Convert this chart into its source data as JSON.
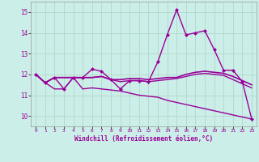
{
  "xlabel": "Windchill (Refroidissement éolien,°C)",
  "background_color": "#cceee8",
  "grid_color": "#b0d8cc",
  "line_color": "#990099",
  "xlim": [
    -0.5,
    23.5
  ],
  "ylim": [
    9.5,
    15.5
  ],
  "yticks": [
    10,
    11,
    12,
    13,
    14,
    15
  ],
  "xticks": [
    0,
    1,
    2,
    3,
    4,
    5,
    6,
    7,
    8,
    9,
    10,
    11,
    12,
    13,
    14,
    15,
    16,
    17,
    18,
    19,
    20,
    21,
    22,
    23
  ],
  "series": [
    {
      "x": [
        0,
        1,
        2,
        3,
        4,
        5,
        6,
        7,
        8,
        9,
        10,
        11,
        12,
        13,
        14,
        15,
        16,
        17,
        18,
        19,
        20,
        21,
        22,
        23
      ],
      "y": [
        12.0,
        11.6,
        11.85,
        11.85,
        11.85,
        11.85,
        11.85,
        11.9,
        11.75,
        11.75,
        11.8,
        11.8,
        11.75,
        11.8,
        11.85,
        11.85,
        12.0,
        12.1,
        12.15,
        12.1,
        12.05,
        11.9,
        11.7,
        11.5
      ],
      "marker": null,
      "linewidth": 1.2
    },
    {
      "x": [
        0,
        1,
        2,
        3,
        4,
        5,
        6,
        7,
        8,
        9,
        10,
        11,
        12,
        13,
        14,
        15,
        16,
        17,
        18,
        19,
        20,
        21,
        22,
        23
      ],
      "y": [
        12.0,
        11.6,
        11.85,
        11.85,
        11.85,
        11.85,
        11.85,
        11.9,
        11.75,
        11.65,
        11.7,
        11.7,
        11.65,
        11.7,
        11.75,
        11.8,
        11.9,
        12.0,
        12.05,
        12.0,
        11.95,
        11.75,
        11.55,
        11.35
      ],
      "marker": null,
      "linewidth": 1.0
    },
    {
      "x": [
        0,
        1,
        2,
        3,
        4,
        5,
        6,
        7,
        8,
        9,
        10,
        11,
        12,
        13,
        14,
        15,
        16,
        17,
        18,
        19,
        20,
        21,
        22,
        23
      ],
      "y": [
        12.0,
        11.6,
        11.85,
        11.3,
        11.85,
        11.85,
        12.25,
        12.15,
        11.75,
        11.3,
        11.7,
        11.7,
        11.65,
        12.6,
        13.9,
        15.1,
        13.9,
        14.0,
        14.1,
        13.2,
        12.2,
        12.2,
        11.65,
        9.85
      ],
      "marker": "D",
      "linewidth": 1.0
    },
    {
      "x": [
        0,
        1,
        2,
        3,
        4,
        5,
        6,
        7,
        8,
        9,
        10,
        11,
        12,
        13,
        14,
        15,
        16,
        17,
        18,
        19,
        20,
        21,
        22,
        23
      ],
      "y": [
        12.0,
        11.6,
        11.3,
        11.3,
        11.85,
        11.3,
        11.35,
        11.3,
        11.25,
        11.2,
        11.1,
        11.0,
        10.95,
        10.9,
        10.75,
        10.65,
        10.55,
        10.45,
        10.35,
        10.25,
        10.15,
        10.05,
        9.95,
        9.85
      ],
      "marker": null,
      "linewidth": 1.0
    }
  ]
}
